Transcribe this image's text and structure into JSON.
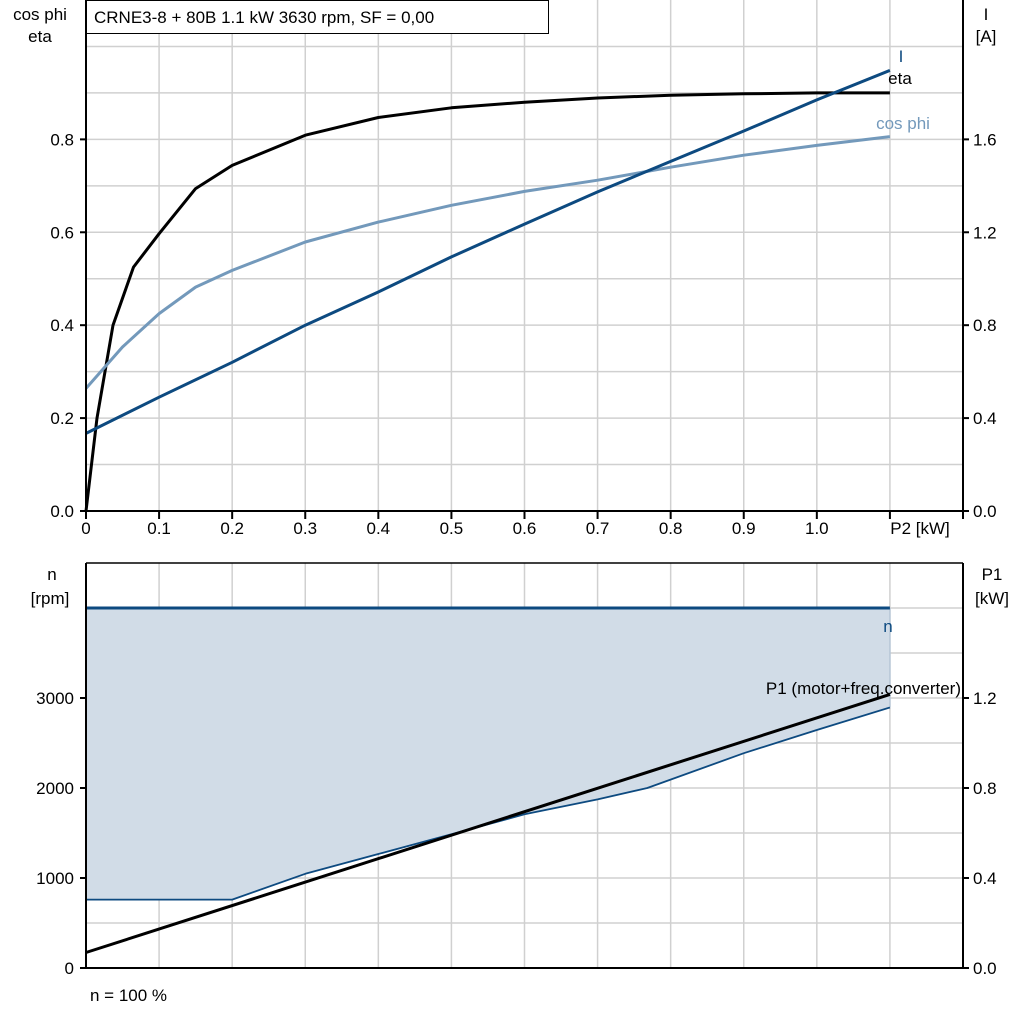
{
  "title": "CRNE3-8 + 80B   1.1 kW   3630 rpm, SF = 0,00",
  "colors": {
    "eta": "#000000",
    "cos_phi": "#7399bb",
    "I": "#0d4a80",
    "n": "#0d4a80",
    "n_fill": "#d1dce7",
    "P1": "#000000",
    "grid": "#d0d0d0"
  },
  "chart_data": [
    {
      "type": "line",
      "x_label": "P2 [kW]",
      "x_ticks": [
        "0",
        "0.1",
        "0.2",
        "0.3",
        "0.4",
        "0.5",
        "0.6",
        "0.7",
        "0.8",
        "0.9",
        "1.0"
      ],
      "xlim": [
        0,
        1.2
      ],
      "y_left_label": [
        "cos phi",
        "eta"
      ],
      "y_left_ticks": [
        "0.0",
        "0.2",
        "0.4",
        "0.6",
        "0.8"
      ],
      "ylim_left": [
        0,
        1.1
      ],
      "y_right_label": [
        "I",
        "[A]"
      ],
      "y_right_ticks": [
        "0.0",
        "0.4",
        "0.8",
        "1.2",
        "1.6"
      ],
      "ylim_right": [
        0,
        2.2
      ],
      "grid": true,
      "series": [
        {
          "name": "eta",
          "axis": "left",
          "color_key": "eta",
          "x": [
            0,
            0.015,
            0.037,
            0.065,
            0.1,
            0.15,
            0.2,
            0.3,
            0.4,
            0.5,
            0.6,
            0.7,
            0.8,
            0.9,
            1.0,
            1.1
          ],
          "y": [
            0,
            0.2,
            0.4,
            0.525,
            0.597,
            0.694,
            0.744,
            0.809,
            0.847,
            0.868,
            0.88,
            0.889,
            0.895,
            0.898,
            0.9,
            0.9
          ]
        },
        {
          "name": "cos phi",
          "axis": "left",
          "color_key": "cos_phi",
          "x": [
            0,
            0.05,
            0.1,
            0.15,
            0.2,
            0.3,
            0.4,
            0.5,
            0.6,
            0.7,
            0.8,
            0.9,
            1.0,
            1.1
          ],
          "y": [
            0.264,
            0.353,
            0.425,
            0.482,
            0.518,
            0.579,
            0.622,
            0.658,
            0.688,
            0.712,
            0.74,
            0.766,
            0.787,
            0.806
          ]
        },
        {
          "name": "I",
          "axis": "right",
          "color_key": "I",
          "x": [
            0,
            0.1,
            0.2,
            0.3,
            0.4,
            0.5,
            0.6,
            0.7,
            0.8,
            0.9,
            1.0,
            1.1
          ],
          "y": [
            0.334,
            0.49,
            0.64,
            0.8,
            0.943,
            1.094,
            1.235,
            1.374,
            1.505,
            1.636,
            1.77,
            1.897
          ]
        }
      ]
    },
    {
      "type": "area",
      "xlim": [
        0,
        1.2
      ],
      "y_left_label": [
        "n",
        "[rpm]"
      ],
      "y_left_ticks": [
        "0",
        "1000",
        "2000",
        "3000"
      ],
      "ylim_left": [
        0,
        4500
      ],
      "y_right_label": [
        "P1",
        "[kW]"
      ],
      "y_right_ticks": [
        "0.0",
        "0.4",
        "0.8",
        "1.2"
      ],
      "ylim_right": [
        0,
        1.8
      ],
      "grid": true,
      "footnote": "n = 100 %",
      "series": [
        {
          "name": "n",
          "axis": "left",
          "color_key": "n",
          "x": [
            0,
            1.1
          ],
          "y": [
            4000,
            4000
          ]
        },
        {
          "axis": "left",
          "color_key": "n",
          "x": [
            0,
            0.2,
            0.3,
            0.4,
            0.5,
            0.6,
            0.7,
            0.768,
            0.9,
            1.0,
            1.1
          ],
          "y": [
            760,
            760,
            1047,
            1267,
            1487,
            1708,
            1873,
            2000,
            2387,
            2644,
            2894
          ]
        },
        {
          "name": "P1 (motor+freq.converter)",
          "axis": "right",
          "color_key": "P1",
          "x": [
            0,
            1.1
          ],
          "y": [
            0.069,
            1.216
          ]
        }
      ]
    }
  ]
}
